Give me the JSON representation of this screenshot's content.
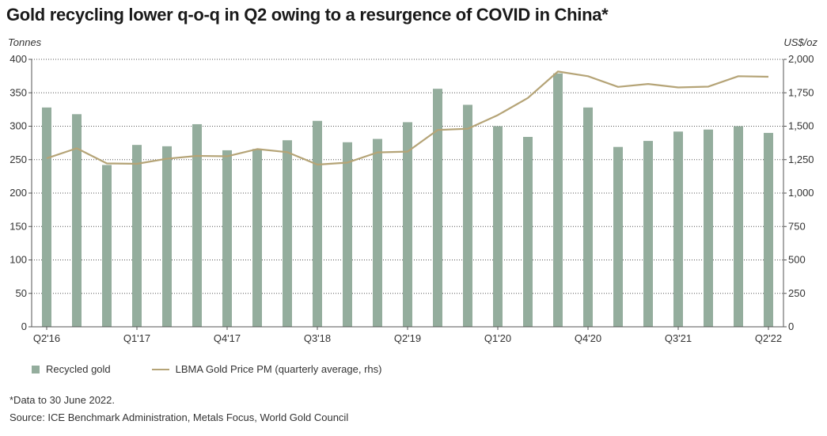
{
  "title": "Gold recycling lower q-o-q in Q2 owing to a resurgence of COVID in China*",
  "note": "*Data to 30 June 2022.",
  "source": "Source: ICE Benchmark Administration, Metals Focus, World Gold Council",
  "legend": {
    "bars": "Recycled gold",
    "line": "LBMA Gold Price PM (quarterly average, rhs)"
  },
  "colors": {
    "bar": "#94ad9d",
    "line": "#b5a477",
    "grid": "#555555"
  },
  "chart_data": {
    "type": "bar",
    "ylabel": "Tonnes",
    "y2label": "US$/oz",
    "ylim": [
      0,
      400
    ],
    "y2lim": [
      0,
      2000
    ],
    "yticks": [
      "0",
      "50",
      "100",
      "150",
      "200",
      "250",
      "300",
      "350",
      "400"
    ],
    "y2ticks": [
      "0",
      "250",
      "500",
      "750",
      "1,000",
      "1,250",
      "1,500",
      "1,750",
      "2,000"
    ],
    "grid": true,
    "legend_position": "bottom-left",
    "categories": [
      "Q2'16",
      "Q3'16",
      "Q4'16",
      "Q1'17",
      "Q2'17",
      "Q3'17",
      "Q4'17",
      "Q1'18",
      "Q2'18",
      "Q3'18",
      "Q4'18",
      "Q1'19",
      "Q2'19",
      "Q3'19",
      "Q4'19",
      "Q1'20",
      "Q2'20",
      "Q3'20",
      "Q4'20",
      "Q1'21",
      "Q2'21",
      "Q3'21",
      "Q4'21",
      "Q1'22",
      "Q2'22"
    ],
    "xtick_labels": [
      {
        "index": 0,
        "label": "Q2'16"
      },
      {
        "index": 3,
        "label": "Q1'17"
      },
      {
        "index": 6,
        "label": "Q4'17"
      },
      {
        "index": 9,
        "label": "Q3'18"
      },
      {
        "index": 12,
        "label": "Q2'19"
      },
      {
        "index": 15,
        "label": "Q1'20"
      },
      {
        "index": 18,
        "label": "Q4'20"
      },
      {
        "index": 21,
        "label": "Q3'21"
      },
      {
        "index": 24,
        "label": "Q2'22"
      }
    ],
    "series": [
      {
        "name": "Recycled gold",
        "type": "bar",
        "axis": "left",
        "values": [
          328,
          318,
          242,
          272,
          270,
          303,
          264,
          266,
          279,
          308,
          276,
          281,
          306,
          356,
          332,
          300,
          284,
          379,
          328,
          269,
          278,
          292,
          295,
          300,
          290
        ]
      },
      {
        "name": "LBMA Gold Price PM (quarterly average, rhs)",
        "type": "line",
        "axis": "right",
        "values": [
          1260,
          1335,
          1222,
          1219,
          1257,
          1278,
          1275,
          1329,
          1306,
          1213,
          1228,
          1304,
          1310,
          1472,
          1481,
          1583,
          1711,
          1909,
          1874,
          1794,
          1816,
          1790,
          1796,
          1874,
          1870
        ]
      }
    ]
  }
}
